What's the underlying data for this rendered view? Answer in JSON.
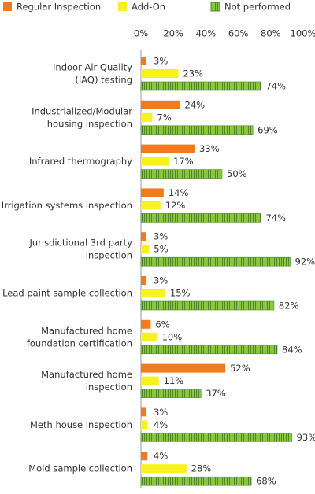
{
  "chart_data": {
    "type": "bar",
    "orientation": "horizontal",
    "categories": [
      "Indoor Air Quality\n(IAQ) testing",
      "Industrialized/Modular\nhousing inspection",
      "Infrared thermography",
      "Irrigation systems inspection",
      "Jurisdictional 3rd party\ninspection",
      "Lead paint sample collection",
      "Manufactured home\nfoundation certification",
      "Manufactured home\ninspection",
      "Meth house inspection",
      "Mold sample collection"
    ],
    "series": [
      {
        "name": "Regular Inspection",
        "color": "#f47a20",
        "values": [
          3,
          24,
          33,
          14,
          3,
          3,
          6,
          52,
          3,
          4
        ],
        "value_labels": [
          "3%",
          "24%",
          "33%",
          "14%",
          "3%",
          "3%",
          "6%",
          "52%",
          "3%",
          "4%"
        ]
      },
      {
        "name": "Add-On",
        "color": "#f7f21e",
        "values": [
          23,
          7,
          17,
          12,
          5,
          15,
          10,
          11,
          4,
          28
        ],
        "value_labels": [
          "23%",
          "7%",
          "17%",
          "12%",
          "5%",
          "15%",
          "10%",
          "11%",
          "4%",
          "28%"
        ]
      },
      {
        "name": "Not performed",
        "color": "#8cc63f",
        "values": [
          74,
          69,
          50,
          74,
          92,
          82,
          84,
          37,
          93,
          68
        ],
        "value_labels": [
          "74%",
          "69%",
          "50%",
          "74%",
          "92%",
          "82%",
          "84%",
          "37%",
          "93%",
          "68%"
        ]
      }
    ],
    "xlim": [
      0,
      100
    ],
    "xticks": [
      {
        "value": 0,
        "label": "0%"
      },
      {
        "value": 20,
        "label": "20%"
      },
      {
        "value": 40,
        "label": "40%"
      },
      {
        "value": 60,
        "label": "60%"
      },
      {
        "value": 80,
        "label": "80%"
      },
      {
        "value": 100,
        "label": "100%"
      }
    ],
    "legend": "top"
  }
}
